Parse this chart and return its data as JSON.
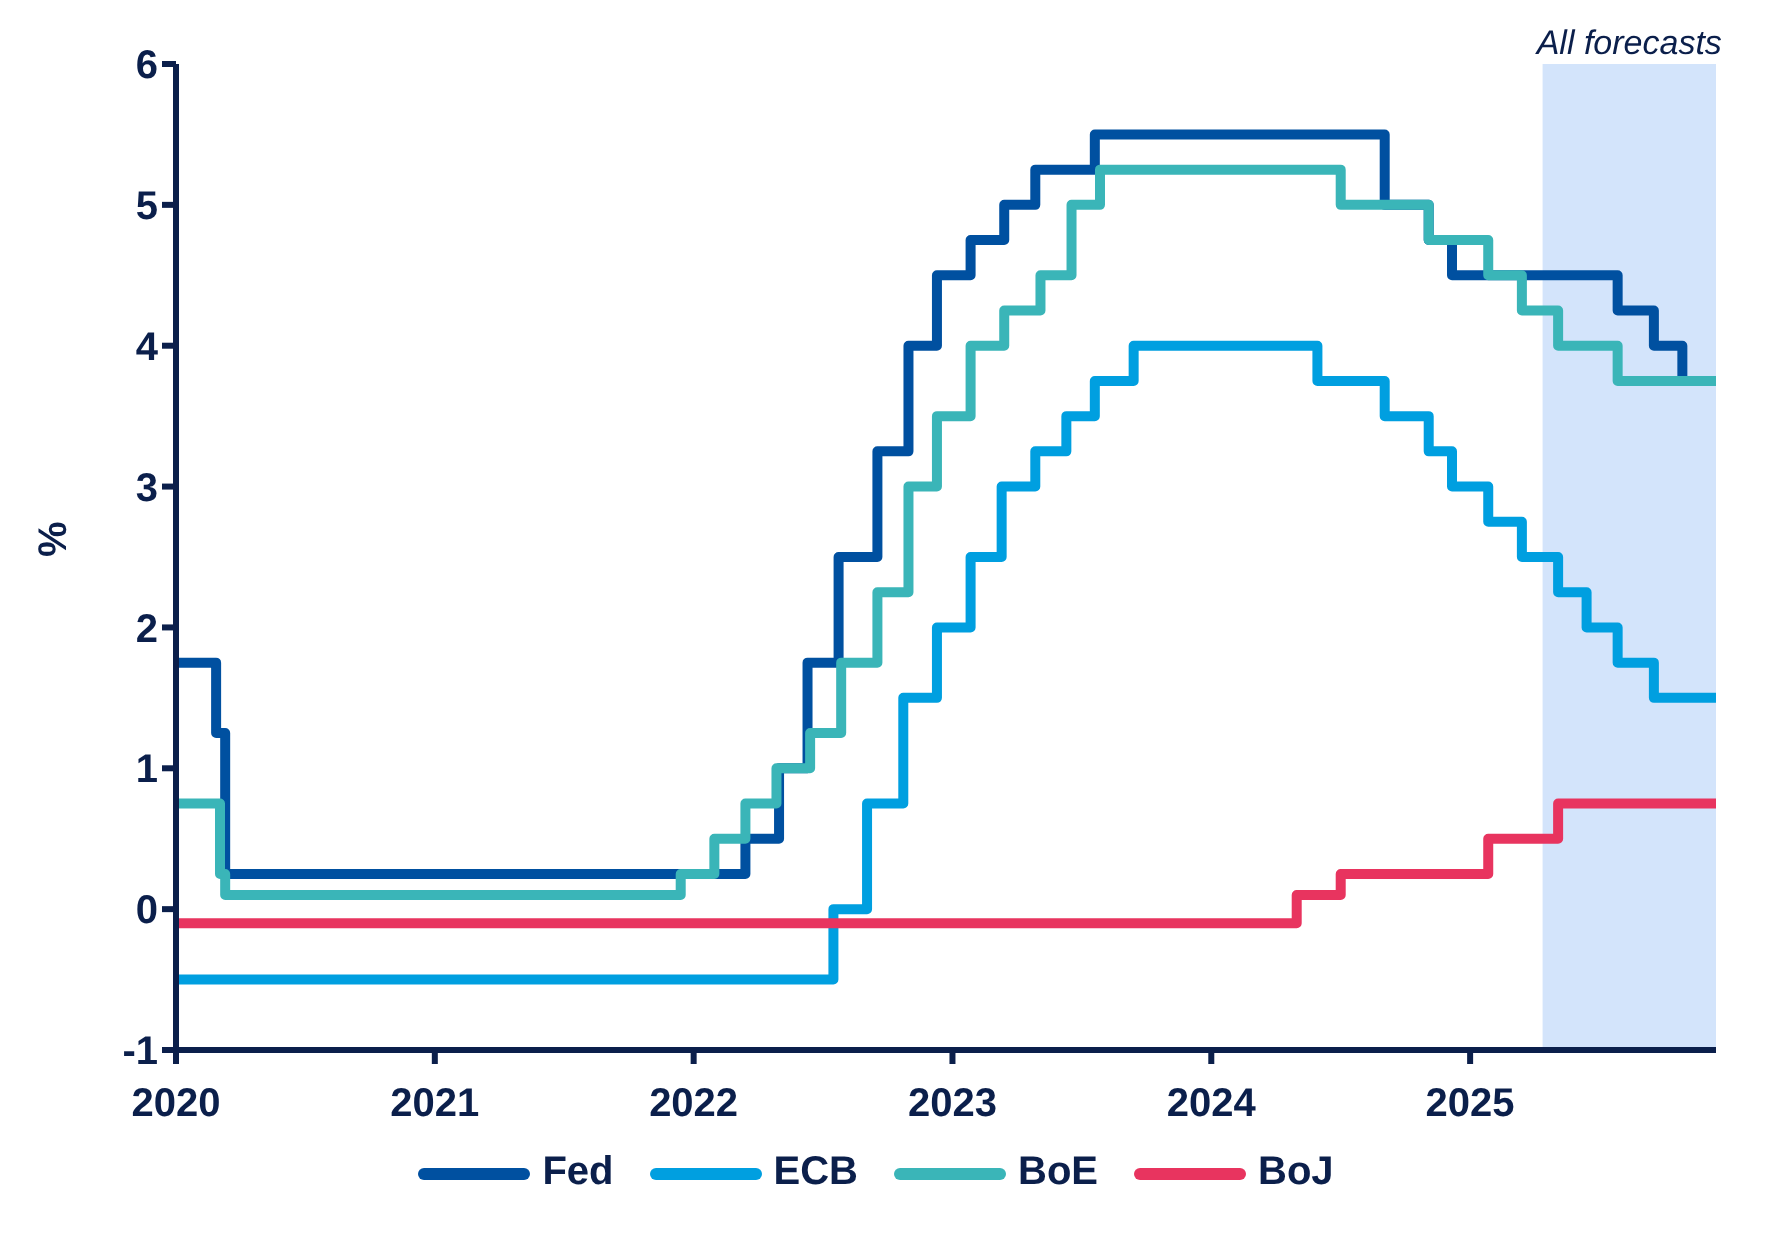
{
  "chart_data": {
    "type": "step",
    "ylabel": "%",
    "xlim": [
      2020,
      2025.95
    ],
    "xticks": [
      2020,
      2021,
      2022,
      2023,
      2024,
      2025
    ],
    "ylim": [
      -1,
      6
    ],
    "yticks": [
      -1,
      0,
      1,
      2,
      3,
      4,
      5,
      6
    ],
    "grid": false,
    "legend": "bottom",
    "marker": "none",
    "line_style": "solid",
    "bands": [
      {
        "axis": "x",
        "from": 2025.28,
        "to": 2025.95,
        "label": "All forecasts",
        "color": "#d3e4fb"
      }
    ],
    "series": [
      {
        "name": "Fed",
        "color": "#0050a0",
        "x": [
          2020,
          2020.155,
          2020.19,
          2022.2,
          2022.33,
          2022.44,
          2022.56,
          2022.71,
          2022.83,
          2022.94,
          2023.07,
          2023.2,
          2023.32,
          2023.55,
          2024.67,
          2024.84,
          2024.93,
          2025.57,
          2025.71,
          2025.82,
          2025.95
        ],
        "values": [
          1.75,
          1.25,
          0.25,
          0.5,
          1.0,
          1.75,
          2.5,
          3.25,
          4.0,
          4.5,
          4.75,
          5.0,
          5.25,
          5.5,
          5.0,
          4.75,
          4.5,
          4.25,
          4.0,
          3.75,
          3.75
        ]
      },
      {
        "name": "ECB",
        "color": "#009fe0",
        "x": [
          2020,
          2022.54,
          2022.67,
          2022.81,
          2022.94,
          2023.07,
          2023.19,
          2023.32,
          2023.44,
          2023.55,
          2023.7,
          2024.41,
          2024.67,
          2024.84,
          2024.93,
          2025.07,
          2025.2,
          2025.34,
          2025.45,
          2025.57,
          2025.71,
          2025.95
        ],
        "values": [
          -0.5,
          0,
          0.75,
          1.5,
          2.0,
          2.5,
          3.0,
          3.25,
          3.5,
          3.75,
          4.0,
          3.75,
          3.5,
          3.25,
          3.0,
          2.75,
          2.5,
          2.25,
          2.0,
          1.75,
          1.5,
          1.5
        ]
      },
      {
        "name": "BoE",
        "color": "#3ab5b8",
        "x": [
          2020,
          2020.17,
          2020.19,
          2021.95,
          2022.08,
          2022.2,
          2022.32,
          2022.45,
          2022.57,
          2022.71,
          2022.83,
          2022.94,
          2023.07,
          2023.2,
          2023.34,
          2023.46,
          2023.57,
          2024.5,
          2024.84,
          2025.07,
          2025.2,
          2025.34,
          2025.57,
          2025.95
        ],
        "values": [
          0.75,
          0.25,
          0.1,
          0.25,
          0.5,
          0.75,
          1.0,
          1.25,
          1.75,
          2.25,
          3.0,
          3.5,
          4.0,
          4.25,
          4.5,
          5.0,
          5.25,
          5.0,
          4.75,
          4.5,
          4.25,
          4.0,
          3.75,
          3.75
        ]
      },
      {
        "name": "BoJ",
        "color": "#e8345f",
        "x": [
          2020,
          2024.33,
          2024.5,
          2025.07,
          2025.34,
          2025.95
        ],
        "values": [
          -0.1,
          0.1,
          0.25,
          0.5,
          0.75,
          0.75
        ]
      }
    ]
  }
}
